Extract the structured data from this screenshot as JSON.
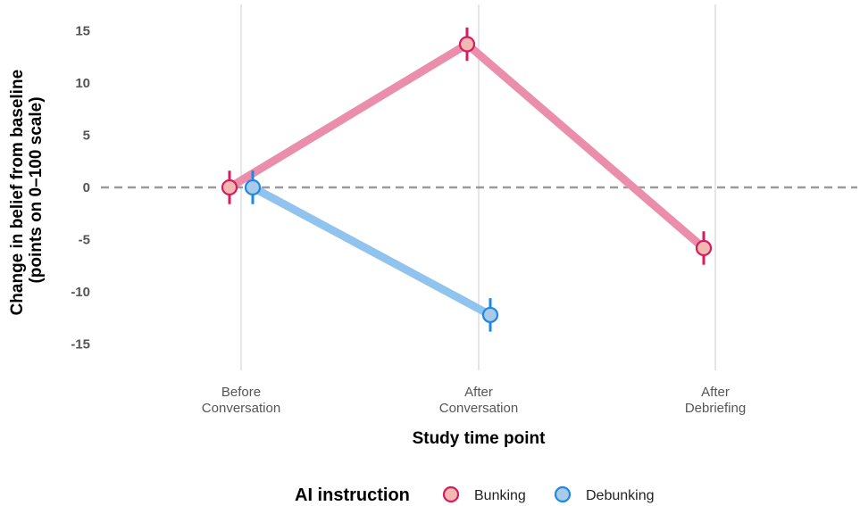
{
  "chart_data": {
    "type": "line",
    "xlabel": "Study time point",
    "ylabel_lines": [
      "Change in belief from baseline",
      "(points on 0–100 scale)"
    ],
    "categories": [
      [
        "Before",
        "Conversation"
      ],
      [
        "After",
        "Conversation"
      ],
      [
        "After",
        "Debriefing"
      ]
    ],
    "ylim": [
      -17.5,
      17.5
    ],
    "yticks": [
      -15,
      -10,
      -5,
      0,
      5,
      10,
      15
    ],
    "ytick_labels": [
      "-15",
      "-10",
      "-5",
      "0",
      "5",
      "10",
      "15"
    ],
    "reference_line": 0,
    "grid": "vertical major lines only",
    "legend_position": "bottom",
    "legend_title": "AI instruction",
    "series": [
      {
        "name": "Bunking",
        "color_line": "#ea8eab",
        "color_fill": "#f2b9b2",
        "color_stroke": "#d81b60",
        "points": [
          {
            "category": 0,
            "y": 0.0,
            "err_low": -1.6,
            "err_high": 1.6
          },
          {
            "category": 1,
            "y": 13.7,
            "err_low": 12.1,
            "err_high": 15.3
          },
          {
            "category": 2,
            "y": -5.8,
            "err_low": -7.4,
            "err_high": -4.2
          }
        ]
      },
      {
        "name": "Debunking",
        "color_line": "#90c4ee",
        "color_fill": "#a9cbe8",
        "color_stroke": "#1e88e5",
        "points": [
          {
            "category": 0,
            "y": 0.0,
            "err_low": -1.6,
            "err_high": 1.6
          },
          {
            "category": 1,
            "y": -12.2,
            "err_low": -13.8,
            "err_high": -10.6
          }
        ]
      }
    ]
  }
}
